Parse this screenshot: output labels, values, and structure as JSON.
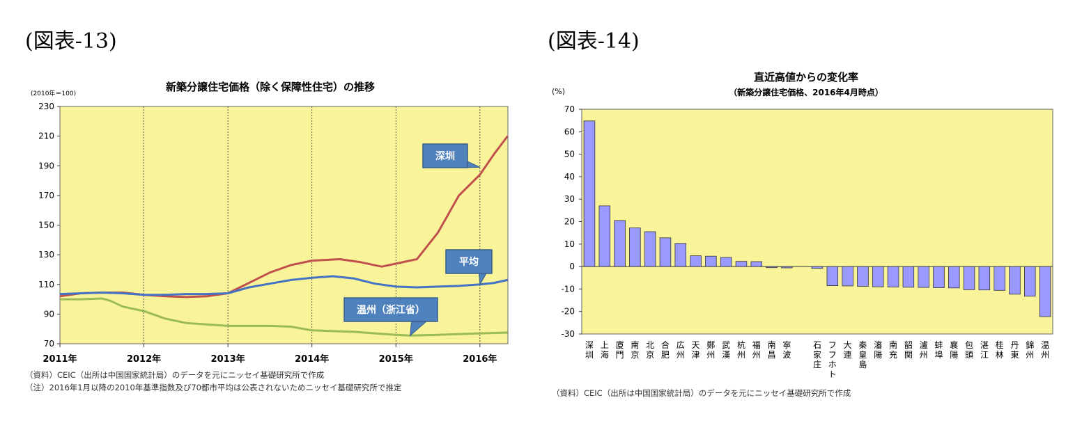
{
  "figure13": {
    "label": "(図表-13)",
    "chart_data": {
      "type": "line",
      "title": "新築分譲住宅価格（除く保障性住宅）の推移",
      "ylabel": "(2010年＝100)",
      "ylim": [
        70,
        230
      ],
      "yticks": [
        70,
        90,
        110,
        130,
        150,
        170,
        190,
        210,
        230
      ],
      "xlim": [
        2011.0,
        2016.333
      ],
      "xticks": [
        {
          "x": 2011,
          "label": "2011年"
        },
        {
          "x": 2012,
          "label": "2012年"
        },
        {
          "x": 2013,
          "label": "2013年"
        },
        {
          "x": 2014,
          "label": "2014年"
        },
        {
          "x": 2015,
          "label": "2015年"
        },
        {
          "x": 2016,
          "label": "2016年"
        }
      ],
      "vgrid": [
        2012,
        2013,
        2014,
        2015,
        2016
      ],
      "grid": true,
      "background": "#f9f39a",
      "series": [
        {
          "name": "深圳",
          "color": "#c0504d",
          "callout": "深圳",
          "callout_at": [
            2016.0,
            189
          ],
          "points": [
            [
              2011.0,
              102
            ],
            [
              2011.25,
              104
            ],
            [
              2011.5,
              104.5
            ],
            [
              2011.75,
              104.5
            ],
            [
              2012.0,
              103
            ],
            [
              2012.25,
              102
            ],
            [
              2012.5,
              101.5
            ],
            [
              2012.75,
              102
            ],
            [
              2013.0,
              104
            ],
            [
              2013.25,
              111
            ],
            [
              2013.5,
              118
            ],
            [
              2013.75,
              123
            ],
            [
              2014.0,
              126
            ],
            [
              2014.33,
              127
            ],
            [
              2014.58,
              125
            ],
            [
              2014.83,
              122
            ],
            [
              2015.0,
              124
            ],
            [
              2015.25,
              127
            ],
            [
              2015.5,
              145
            ],
            [
              2015.75,
              170
            ],
            [
              2016.0,
              184
            ],
            [
              2016.17,
              198
            ],
            [
              2016.33,
              210
            ]
          ]
        },
        {
          "name": "平均",
          "color": "#4472c4",
          "callout": "平均",
          "callout_at": [
            2016.0,
            110
          ],
          "points": [
            [
              2011.0,
              103.5
            ],
            [
              2011.25,
              104
            ],
            [
              2011.5,
              104.5
            ],
            [
              2011.75,
              104
            ],
            [
              2012.0,
              103
            ],
            [
              2012.25,
              103
            ],
            [
              2012.5,
              103.5
            ],
            [
              2012.75,
              103.5
            ],
            [
              2013.0,
              104
            ],
            [
              2013.25,
              108
            ],
            [
              2013.5,
              110.5
            ],
            [
              2013.75,
              113
            ],
            [
              2014.0,
              114.5
            ],
            [
              2014.25,
              115.5
            ],
            [
              2014.5,
              114
            ],
            [
              2014.75,
              110.5
            ],
            [
              2015.0,
              108.5
            ],
            [
              2015.25,
              108
            ],
            [
              2015.5,
              108.5
            ],
            [
              2015.75,
              109
            ],
            [
              2016.0,
              110
            ],
            [
              2016.17,
              111
            ],
            [
              2016.33,
              113
            ]
          ]
        },
        {
          "name": "温州（浙江省）",
          "color": "#9bbb59",
          "callout": "温州（浙江省）",
          "callout_at": [
            2015.17,
            75.5
          ],
          "points": [
            [
              2011.0,
              100
            ],
            [
              2011.25,
              100
            ],
            [
              2011.5,
              100.5
            ],
            [
              2011.6,
              99
            ],
            [
              2011.75,
              95
            ],
            [
              2012.0,
              92
            ],
            [
              2012.25,
              87
            ],
            [
              2012.5,
              84
            ],
            [
              2012.75,
              83
            ],
            [
              2013.0,
              82
            ],
            [
              2013.25,
              82
            ],
            [
              2013.5,
              82
            ],
            [
              2013.75,
              81.5
            ],
            [
              2014.0,
              79
            ],
            [
              2014.25,
              78.5
            ],
            [
              2014.5,
              78
            ],
            [
              2014.75,
              77
            ],
            [
              2015.0,
              76
            ],
            [
              2015.17,
              75.5
            ],
            [
              2015.5,
              76
            ],
            [
              2015.75,
              76.5
            ],
            [
              2016.0,
              77
            ],
            [
              2016.33,
              77.5
            ]
          ]
        }
      ]
    },
    "notes": [
      "（資料）CEIC（出所は中国国家統計局）のデータを元にニッセイ基礎研究所で作成",
      "（注）2016年1月以降の2010年基準指数及び70都市平均は公表されないためニッセイ基礎研究所で推定"
    ]
  },
  "figure14": {
    "label": "(図表-14)",
    "chart_data": {
      "type": "bar",
      "title": "直近高値からの変化率",
      "subtitle": "（新築分譲住宅価格、2016年4月時点）",
      "ylabel": "(%)",
      "ylim": [
        -30,
        70
      ],
      "yticks": [
        -30,
        -20,
        -10,
        0,
        10,
        20,
        30,
        40,
        50,
        60,
        70
      ],
      "grid": true,
      "background": "#f9f39a",
      "bar_color": "#9999ff",
      "gap_after_index": 13,
      "categories": [
        "深圳",
        "上海",
        "廈門",
        "南京",
        "北京",
        "合肥",
        "広州",
        "天津",
        "鄭州",
        "武漢",
        "杭州",
        "福州",
        "南昌",
        "寧波",
        "石家庄",
        "フフホト",
        "大連",
        "秦皇島",
        "瀋陽",
        "南充",
        "韶関",
        "瀘州",
        "蚌埠",
        "襄陽",
        "包頭",
        "湛江",
        "桂林",
        "丹東",
        "錦州",
        "温州"
      ],
      "values": [
        64.8,
        27.0,
        20.5,
        17.2,
        15.5,
        12.8,
        10.3,
        4.8,
        4.6,
        4.1,
        2.3,
        2.2,
        -0.5,
        -0.6,
        -0.8,
        -8.5,
        -8.6,
        -8.8,
        -9.0,
        -9.1,
        -9.2,
        -9.3,
        -9.4,
        -9.5,
        -10.3,
        -10.4,
        -10.6,
        -12.3,
        -13.2,
        -22.3
      ]
    },
    "notes": [
      "（資料）CEIC（出所は中国国家統計局）のデータを元にニッセイ基礎研究所で作成"
    ]
  }
}
